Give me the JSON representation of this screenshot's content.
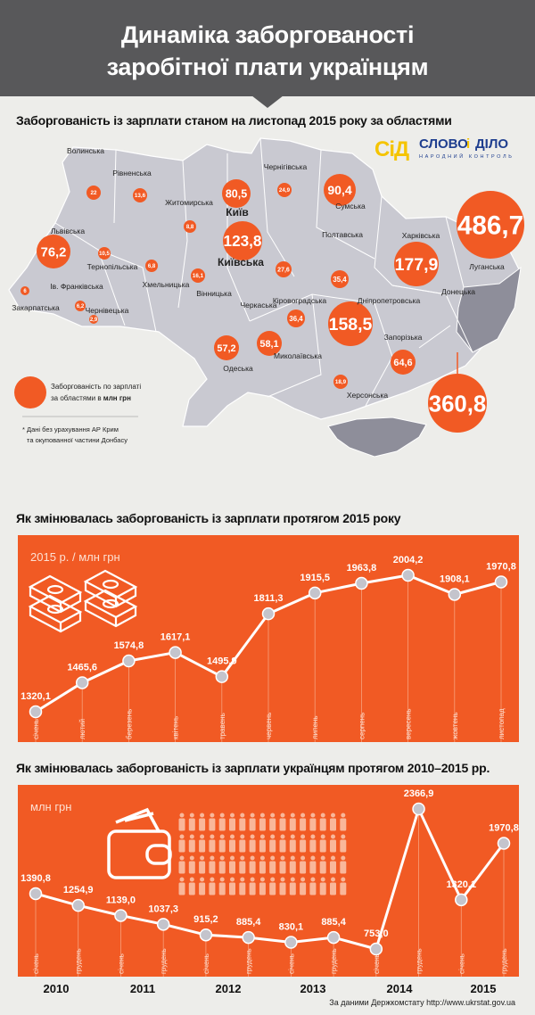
{
  "header": {
    "title_line1": "Динаміка заборгованості",
    "title_line2": "заробітної плати українцям"
  },
  "map_section": {
    "heading": "Заборгованість із зарплати станом на листопад 2015 року за областями",
    "logo": {
      "mark": "СіД",
      "name_left": "СЛОВО",
      "name_i": "і",
      "name_right": "ДІЛО",
      "tagline": "НАРОДНИЙ КОНТРОЛЬ"
    },
    "unit": "млн грн",
    "regions": [
      {
        "name": "Волинська",
        "value": "22"
      },
      {
        "name": "Рівненська",
        "value": "13,6"
      },
      {
        "name": "Житомирська",
        "value": "8,8"
      },
      {
        "name": "Київ",
        "value": "80,5"
      },
      {
        "name": "Київська",
        "value": "123,8"
      },
      {
        "name": "Чернігівська",
        "value": "24,9"
      },
      {
        "name": "Сумська",
        "value": "90,4"
      },
      {
        "name": "Луганська",
        "value": "486,7"
      },
      {
        "name": "Львівська",
        "value": "76,2"
      },
      {
        "name": "Тернопільська",
        "value": "10,5"
      },
      {
        "name": "Хмельницька",
        "value": "6,8"
      },
      {
        "name": "Вінницька",
        "value": "16,1"
      },
      {
        "name": "Черкаська",
        "value": "27,6"
      },
      {
        "name": "Полтавська",
        "value": "35,4"
      },
      {
        "name": "Харківська",
        "value": "177,9"
      },
      {
        "name": "Дніпропетровська",
        "value": "158,5"
      },
      {
        "name": "Кіровоградська",
        "value": "36,4"
      },
      {
        "name": "Закарпатська",
        "value": "6"
      },
      {
        "name": "Ів. Франківська",
        "value": "6,2"
      },
      {
        "name": "Чернівецька",
        "value": "2,9"
      },
      {
        "name": "Одеська",
        "value": "57,2"
      },
      {
        "name": "Миколаївська",
        "value": "58,1"
      },
      {
        "name": "Запорізька",
        "value": "64,6"
      },
      {
        "name": "Херсонська",
        "value": "18,9"
      },
      {
        "name": "Донецька",
        "value": "360,8"
      }
    ],
    "legend_line1": "Заборгованість по зарплаті",
    "legend_line2_prefix": "за областями в ",
    "legend_line2_bold": "млн грн",
    "note_line1": "* Дані без урахування  АР Крим",
    "note_line2": "та окупованної частини Донбасу"
  },
  "colors": {
    "accent": "#f15a24",
    "map": "#c9c9d1",
    "map_dark": "#8e8e9a",
    "header": "#58585a",
    "background": "#ededea",
    "point": "#c4c4cc"
  },
  "chart_data": [
    {
      "type": "line",
      "title": "Як змінювалась заборгованість із зарплати протягом 2015 року",
      "subtitle": "2015 р. / млн грн",
      "categories": [
        "січень",
        "лютий",
        "березень",
        "квітень",
        "травень",
        "червень",
        "липень",
        "серпень",
        "вересень",
        "жовтень",
        "листопад"
      ],
      "values": [
        1320.1,
        1465.6,
        1574.8,
        1617.1,
        1495.9,
        1811.3,
        1915.5,
        1963.8,
        2004.2,
        1908.1,
        1970.8
      ],
      "labels": [
        "1320,1",
        "1465,6",
        "1574,8",
        "1617,1",
        "1495,9",
        "1811,3",
        "1915,5",
        "1963,8",
        "2004,2",
        "1908,1",
        "1970,8"
      ],
      "grid": false
    },
    {
      "type": "line",
      "title": "Як змінювалась заборгованість із зарплати українцям протягом 2010–2015 рр.",
      "subtitle": "млн грн",
      "categories": [
        "січень",
        "грудень",
        "січень",
        "грудень",
        "січень",
        "грудень",
        "січень",
        "грудень",
        "січень",
        "грудень",
        "січень",
        "грудень"
      ],
      "years": [
        "2010",
        "2011",
        "2012",
        "2013",
        "2014",
        "2015"
      ],
      "values": [
        1390.8,
        1254.9,
        1139.0,
        1037.3,
        915.2,
        885.4,
        830.1,
        885.4,
        753.0,
        2366.9,
        1320.1,
        1970.8
      ],
      "labels": [
        "1390,8",
        "1254,9",
        "1139,0",
        "1037,3",
        "915,2",
        "885,4",
        "830,1",
        "885,4",
        "753,0",
        "2366,9",
        "1320,1",
        "1970,8"
      ],
      "grid": false
    }
  ],
  "footer": {
    "source": "За даними Держкомстату http://www.ukrstat.gov.ua"
  }
}
